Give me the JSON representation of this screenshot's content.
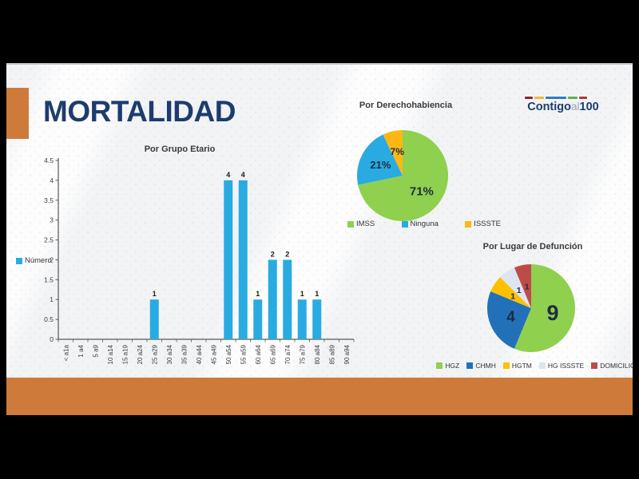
{
  "slide": {
    "title": "MORTALIDAD",
    "logo": {
      "part1": "Contigo",
      "part2": "al",
      "part3": "100",
      "dash_colors": [
        "#8B2433",
        "#EDBA37",
        "#2F7CC2",
        "#62B146",
        "#A83B37"
      ]
    }
  },
  "colors": {
    "accent_orange": "#CE7A3B",
    "title_navy": "#1D3C6E",
    "logo_navy": "#1D3C6E",
    "logo_gray": "#97A6B9",
    "chart_text": "#3F3F3F",
    "pie_label_text": "#1D2C42"
  },
  "chart_data": [
    {
      "id": "por-grupo-etario",
      "type": "bar",
      "title": "Por Grupo Etario",
      "legend": [
        {
          "label": "Número",
          "color": "#29ABE2"
        }
      ],
      "legend_position": "left",
      "bar_color": "#29ABE2",
      "categories": [
        "< a1a",
        "1 a4",
        "5 a9",
        "10 a14",
        "15 a19",
        "20 a24",
        "25 a29",
        "30 a34",
        "35 a39",
        "40 a44",
        "45 a49",
        "50 a54",
        "55 a59",
        "60 a64",
        "65 a69",
        "70 a74",
        "75 a79",
        "80 a84",
        "85 a89",
        "90 a94"
      ],
      "values": [
        0,
        0,
        0,
        0,
        0,
        0,
        1,
        0,
        0,
        0,
        0,
        4,
        4,
        1,
        2,
        2,
        1,
        1,
        0,
        0
      ],
      "data_labels": true,
      "ylim": [
        0,
        4.5
      ],
      "yticks": [
        "0",
        "0.5",
        "1",
        "1.5",
        "2",
        "2.5",
        "3",
        "3.5",
        "4",
        "4.5"
      ],
      "grid": false
    },
    {
      "id": "por-derechohabiencia",
      "type": "pie",
      "title": "Por Derechohabiencia",
      "legend_position": "bottom",
      "slices": [
        {
          "label": "IMSS",
          "value": 71,
          "display": "71%",
          "color": "#8FD04F"
        },
        {
          "label": "Ninguna",
          "value": 21,
          "display": "21%",
          "color": "#29ABE2"
        },
        {
          "label": "ISSSTE",
          "value": 7,
          "display": "7%",
          "color": "#FDB714"
        }
      ]
    },
    {
      "id": "por-lugar-de-defuncion",
      "type": "pie",
      "title": "Por Lugar de Defunción",
      "legend_position": "bottom",
      "slices": [
        {
          "label": "HGZ",
          "value": 9,
          "display": "9",
          "color": "#8FD04F"
        },
        {
          "label": "CHMH",
          "value": 4,
          "display": "4",
          "color": "#2271B8"
        },
        {
          "label": "HGTM",
          "value": 1,
          "display": "1",
          "color": "#FFC000"
        },
        {
          "label": "HG ISSSTE",
          "value": 1,
          "display": "1",
          "color": "#DDE5F2"
        },
        {
          "label": "DOMICILIO",
          "value": 1,
          "display": "1",
          "color": "#BE4B48"
        }
      ]
    }
  ]
}
